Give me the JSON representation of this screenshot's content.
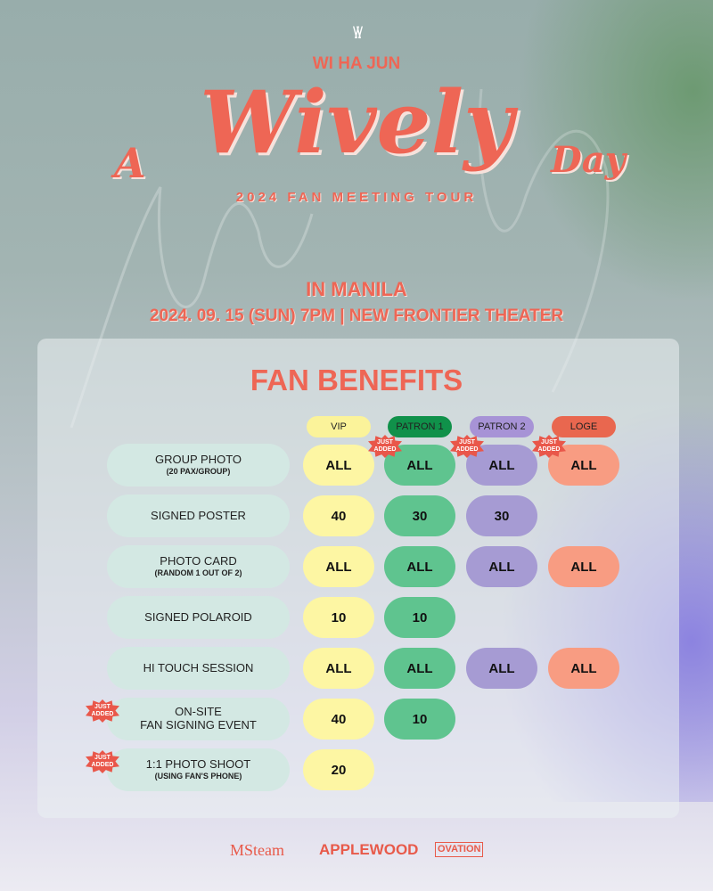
{
  "header": {
    "logo": "\\/\\/",
    "artist": "WI HA JUN",
    "title_a": "A",
    "title_main": "Wively",
    "title_day": "Day",
    "tour": "2024 FAN MEETING TOUR",
    "city": "IN MANILA",
    "date_venue": "2024. 09. 15 (SUN) 7PM  |  NEW FRONTIER THEATER"
  },
  "benefits": {
    "title": "FAN BENEFITS",
    "badge": "JUST ADDED",
    "tiers": [
      {
        "label": "VIP",
        "header_color": "#fbf39a",
        "cell_color": "#fdf6a3"
      },
      {
        "label": "PATRON 1",
        "header_color": "#10914a",
        "cell_color": "#5fc48f"
      },
      {
        "label": "PATRON 2",
        "header_color": "#a793d6",
        "cell_color": "#a69bd3"
      },
      {
        "label": "LOGE",
        "header_color": "#e9674f",
        "cell_color": "#f89c82"
      }
    ],
    "rows": [
      {
        "label": "GROUP PHOTO",
        "sub": "(20 PAX/GROUP)",
        "cells": [
          "ALL",
          "ALL",
          "ALL",
          "ALL"
        ],
        "new_cells": [
          1,
          2,
          3
        ],
        "row_new": false
      },
      {
        "label": "SIGNED POSTER",
        "sub": "",
        "cells": [
          "40",
          "30",
          "30",
          null
        ],
        "new_cells": [],
        "row_new": false
      },
      {
        "label": "PHOTO CARD",
        "sub": "(RANDOM 1 OUT OF 2)",
        "cells": [
          "ALL",
          "ALL",
          "ALL",
          "ALL"
        ],
        "new_cells": [],
        "row_new": false
      },
      {
        "label": "SIGNED POLAROID",
        "sub": "",
        "cells": [
          "10",
          "10",
          null,
          null
        ],
        "new_cells": [],
        "row_new": false
      },
      {
        "label": "HI TOUCH SESSION",
        "sub": "",
        "cells": [
          "ALL",
          "ALL",
          "ALL",
          "ALL"
        ],
        "new_cells": [],
        "row_new": false
      },
      {
        "label": "ON-SITE\nFAN SIGNING EVENT",
        "sub": "",
        "cells": [
          "40",
          "10",
          null,
          null
        ],
        "new_cells": [],
        "row_new": true
      },
      {
        "label": "1:1 PHOTO SHOOT",
        "sub": "(USING FAN'S PHONE)",
        "cells": [
          "20",
          null,
          null,
          null
        ],
        "new_cells": [],
        "row_new": true
      }
    ]
  },
  "footer": {
    "sponsors": [
      "MSteam",
      "APPLEWOOD",
      "OVATION"
    ]
  },
  "colors": {
    "accent": "#ee6655",
    "label_pill": "#d3e8e3"
  }
}
